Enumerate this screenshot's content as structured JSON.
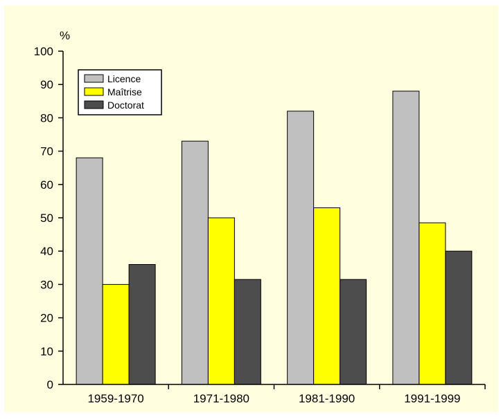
{
  "colors": {
    "background": "#ffffe0",
    "axis": "#000000",
    "bar_outline": "#000000"
  },
  "chart_data": {
    "type": "bar",
    "title": "",
    "xlabel": "",
    "ylabel": "%",
    "ylim": [
      0,
      100
    ],
    "yticks": [
      0,
      10,
      20,
      30,
      40,
      50,
      60,
      70,
      80,
      90,
      100
    ],
    "grid": false,
    "legend_position": "top-left",
    "categories": [
      "1959-1970",
      "1971-1980",
      "1981-1990",
      "1991-1999"
    ],
    "series": [
      {
        "name": "Licence",
        "color": "#c0c0c0",
        "values": [
          68,
          73,
          82,
          88
        ]
      },
      {
        "name": "Maîtrise",
        "color": "#ffff00",
        "values": [
          30,
          50,
          53,
          48.5
        ]
      },
      {
        "name": "Doctorat",
        "color": "#4d4d4d",
        "values": [
          36,
          31.5,
          31.5,
          40
        ]
      }
    ]
  }
}
